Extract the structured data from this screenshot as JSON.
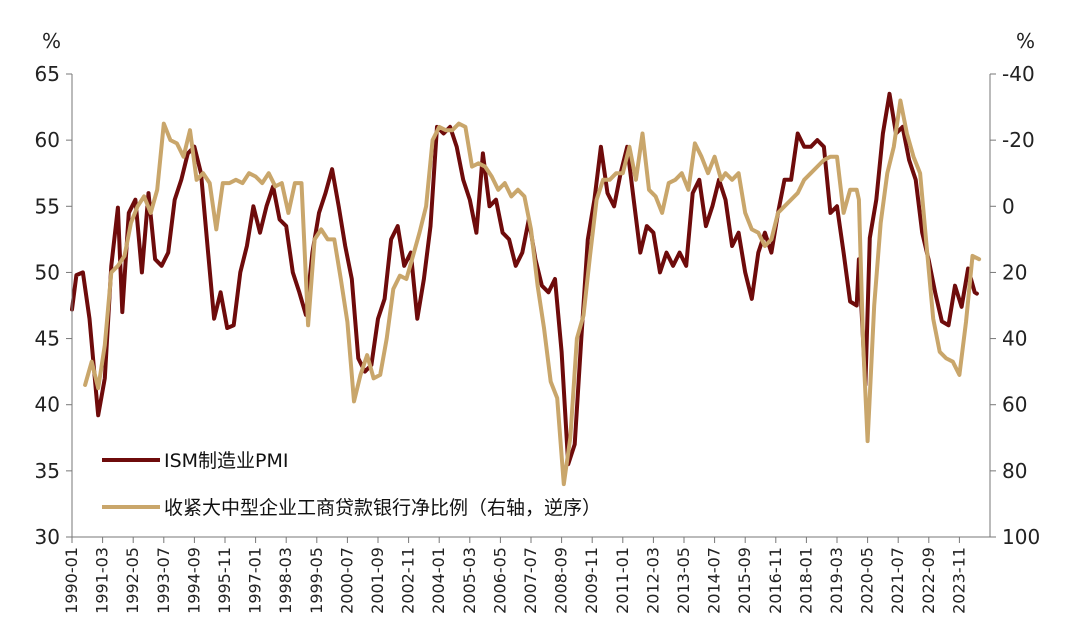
{
  "chart_data": {
    "type": "line",
    "title": "",
    "left_axis": {
      "unit": "%",
      "min": 30,
      "max": 65,
      "ticks": [
        "30",
        "35",
        "40",
        "45",
        "50",
        "55",
        "60",
        "65"
      ]
    },
    "right_axis": {
      "unit": "%",
      "min": -40,
      "max": 100,
      "inverted": true,
      "ticks": [
        "-40",
        "-20",
        "0",
        "20",
        "40",
        "60",
        "80",
        "100"
      ]
    },
    "x_tick_labels": [
      "1990-01",
      "1991-03",
      "1992-05",
      "1993-07",
      "1994-09",
      "1995-11",
      "1997-01",
      "1998-03",
      "1999-05",
      "2000-07",
      "2001-09",
      "2002-11",
      "2004-01",
      "2005-03",
      "2006-05",
      "2007-07",
      "2008-09",
      "2009-11",
      "2011-01",
      "2012-03",
      "2013-05",
      "2014-07",
      "2015-09",
      "2016-11",
      "2018-01",
      "2019-03",
      "2020-05",
      "2021-07",
      "2022-09",
      "2023-11"
    ],
    "series": [
      {
        "name": "ISM制造业PMI",
        "color": "#6e0b0b",
        "axis": "left",
        "points": [
          [
            "1990-01",
            47.2
          ],
          [
            "1990-03",
            49.8
          ],
          [
            "1990-06",
            50.0
          ],
          [
            "1990-09",
            46.5
          ],
          [
            "1990-12",
            41.0
          ],
          [
            "1991-01",
            39.2
          ],
          [
            "1991-04",
            42.0
          ],
          [
            "1991-07",
            50.5
          ],
          [
            "1991-10",
            54.9
          ],
          [
            "1991-12",
            47.0
          ],
          [
            "1992-03",
            54.5
          ],
          [
            "1992-06",
            55.5
          ],
          [
            "1992-09",
            50.0
          ],
          [
            "1992-12",
            56.0
          ],
          [
            "1993-03",
            51.0
          ],
          [
            "1993-06",
            50.5
          ],
          [
            "1993-09",
            51.5
          ],
          [
            "1993-12",
            55.5
          ],
          [
            "1994-03",
            57.0
          ],
          [
            "1994-06",
            59.0
          ],
          [
            "1994-09",
            59.5
          ],
          [
            "1994-12",
            57.5
          ],
          [
            "1995-03",
            52.0
          ],
          [
            "1995-06",
            46.5
          ],
          [
            "1995-09",
            48.5
          ],
          [
            "1995-12",
            45.8
          ],
          [
            "1996-03",
            46.0
          ],
          [
            "1996-06",
            50.0
          ],
          [
            "1996-09",
            52.0
          ],
          [
            "1996-12",
            55.0
          ],
          [
            "1997-03",
            53.0
          ],
          [
            "1997-06",
            55.0
          ],
          [
            "1997-09",
            56.5
          ],
          [
            "1997-12",
            54.0
          ],
          [
            "1998-03",
            53.5
          ],
          [
            "1998-06",
            50.0
          ],
          [
            "1998-09",
            48.5
          ],
          [
            "1998-12",
            46.8
          ],
          [
            "1999-03",
            51.5
          ],
          [
            "1999-06",
            54.5
          ],
          [
            "1999-09",
            56.0
          ],
          [
            "1999-12",
            57.8
          ],
          [
            "2000-03",
            55.0
          ],
          [
            "2000-06",
            52.0
          ],
          [
            "2000-09",
            49.5
          ],
          [
            "2000-12",
            43.5
          ],
          [
            "2001-03",
            42.5
          ],
          [
            "2001-06",
            43.0
          ],
          [
            "2001-09",
            46.5
          ],
          [
            "2001-12",
            48.0
          ],
          [
            "2002-03",
            52.5
          ],
          [
            "2002-06",
            53.5
          ],
          [
            "2002-09",
            50.5
          ],
          [
            "2002-12",
            51.5
          ],
          [
            "2003-03",
            46.5
          ],
          [
            "2003-06",
            49.5
          ],
          [
            "2003-09",
            53.5
          ],
          [
            "2003-12",
            61.0
          ],
          [
            "2004-03",
            60.5
          ],
          [
            "2004-06",
            61.0
          ],
          [
            "2004-09",
            59.5
          ],
          [
            "2004-12",
            57.0
          ],
          [
            "2005-03",
            55.5
          ],
          [
            "2005-06",
            53.0
          ],
          [
            "2005-09",
            59.0
          ],
          [
            "2005-12",
            55.0
          ],
          [
            "2006-03",
            55.5
          ],
          [
            "2006-06",
            53.0
          ],
          [
            "2006-09",
            52.5
          ],
          [
            "2006-12",
            50.5
          ],
          [
            "2007-03",
            51.5
          ],
          [
            "2007-06",
            54.0
          ],
          [
            "2007-09",
            51.0
          ],
          [
            "2007-12",
            49.0
          ],
          [
            "2008-03",
            48.5
          ],
          [
            "2008-06",
            49.5
          ],
          [
            "2008-09",
            44.0
          ],
          [
            "2008-12",
            35.5
          ],
          [
            "2009-03",
            37.0
          ],
          [
            "2009-06",
            45.0
          ],
          [
            "2009-09",
            52.5
          ],
          [
            "2009-12",
            55.5
          ],
          [
            "2010-03",
            59.5
          ],
          [
            "2010-06",
            56.0
          ],
          [
            "2010-09",
            55.0
          ],
          [
            "2010-12",
            57.5
          ],
          [
            "2011-03",
            59.5
          ],
          [
            "2011-06",
            55.5
          ],
          [
            "2011-09",
            51.5
          ],
          [
            "2011-12",
            53.5
          ],
          [
            "2012-03",
            53.0
          ],
          [
            "2012-06",
            50.0
          ],
          [
            "2012-09",
            51.5
          ],
          [
            "2012-12",
            50.5
          ],
          [
            "2013-03",
            51.5
          ],
          [
            "2013-06",
            50.5
          ],
          [
            "2013-09",
            56.0
          ],
          [
            "2013-12",
            57.0
          ],
          [
            "2014-03",
            53.5
          ],
          [
            "2014-06",
            55.0
          ],
          [
            "2014-09",
            57.0
          ],
          [
            "2014-12",
            55.5
          ],
          [
            "2015-03",
            52.0
          ],
          [
            "2015-06",
            53.0
          ],
          [
            "2015-09",
            50.0
          ],
          [
            "2015-12",
            48.0
          ],
          [
            "2016-03",
            51.5
          ],
          [
            "2016-06",
            53.0
          ],
          [
            "2016-09",
            51.5
          ],
          [
            "2016-12",
            54.5
          ],
          [
            "2017-03",
            57.0
          ],
          [
            "2017-06",
            57.0
          ],
          [
            "2017-09",
            60.5
          ],
          [
            "2017-12",
            59.5
          ],
          [
            "2018-03",
            59.5
          ],
          [
            "2018-06",
            60.0
          ],
          [
            "2018-09",
            59.5
          ],
          [
            "2018-12",
            54.5
          ],
          [
            "2019-03",
            55.0
          ],
          [
            "2019-06",
            51.5
          ],
          [
            "2019-09",
            47.8
          ],
          [
            "2019-12",
            47.5
          ],
          [
            "2020-01",
            51.0
          ],
          [
            "2020-04",
            41.5
          ],
          [
            "2020-06",
            52.6
          ],
          [
            "2020-09",
            55.5
          ],
          [
            "2020-12",
            60.5
          ],
          [
            "2021-03",
            63.5
          ],
          [
            "2021-06",
            60.5
          ],
          [
            "2021-09",
            61.0
          ],
          [
            "2021-12",
            58.5
          ],
          [
            "2022-03",
            57.0
          ],
          [
            "2022-06",
            53.0
          ],
          [
            "2022-09",
            50.9
          ],
          [
            "2022-12",
            48.4
          ],
          [
            "2023-03",
            46.3
          ],
          [
            "2023-06",
            46.0
          ],
          [
            "2023-09",
            49.0
          ],
          [
            "2023-12",
            47.4
          ],
          [
            "2024-03",
            50.3
          ],
          [
            "2024-06",
            48.5
          ],
          [
            "2024-07",
            48.4
          ]
        ]
      },
      {
        "name": "收紧大中型企业工商贷款银行净比例（右轴，逆序）",
        "color": "#c9a66b",
        "axis": "right",
        "points": [
          [
            "1990-07",
            54
          ],
          [
            "1990-10",
            47
          ],
          [
            "1991-01",
            55
          ],
          [
            "1991-04",
            42
          ],
          [
            "1991-07",
            20
          ],
          [
            "1991-10",
            18
          ],
          [
            "1992-01",
            15
          ],
          [
            "1992-04",
            5
          ],
          [
            "1992-07",
            0
          ],
          [
            "1992-10",
            -3
          ],
          [
            "1993-01",
            2
          ],
          [
            "1993-04",
            -5
          ],
          [
            "1993-07",
            -25
          ],
          [
            "1993-10",
            -20
          ],
          [
            "1994-01",
            -19
          ],
          [
            "1994-04",
            -15
          ],
          [
            "1994-07",
            -23
          ],
          [
            "1994-10",
            -8
          ],
          [
            "1995-01",
            -10
          ],
          [
            "1995-04",
            -7
          ],
          [
            "1995-07",
            7
          ],
          [
            "1995-10",
            -7
          ],
          [
            "1996-01",
            -7
          ],
          [
            "1996-04",
            -8
          ],
          [
            "1996-07",
            -7
          ],
          [
            "1996-10",
            -10
          ],
          [
            "1997-01",
            -9
          ],
          [
            "1997-04",
            -7
          ],
          [
            "1997-07",
            -10
          ],
          [
            "1997-10",
            -6
          ],
          [
            "1998-01",
            -7
          ],
          [
            "1998-04",
            2
          ],
          [
            "1998-07",
            -7
          ],
          [
            "1998-10",
            -7
          ],
          [
            "1999-01",
            36
          ],
          [
            "1999-04",
            10
          ],
          [
            "1999-07",
            7
          ],
          [
            "1999-10",
            10
          ],
          [
            "2000-01",
            10
          ],
          [
            "2000-04",
            22
          ],
          [
            "2000-07",
            35
          ],
          [
            "2000-10",
            59
          ],
          [
            "2001-01",
            51
          ],
          [
            "2001-04",
            45
          ],
          [
            "2001-07",
            52
          ],
          [
            "2001-10",
            51
          ],
          [
            "2002-01",
            40
          ],
          [
            "2002-04",
            25
          ],
          [
            "2002-07",
            21
          ],
          [
            "2002-10",
            22
          ],
          [
            "2003-01",
            15
          ],
          [
            "2003-04",
            8
          ],
          [
            "2003-07",
            0
          ],
          [
            "2003-10",
            -20
          ],
          [
            "2004-01",
            -24
          ],
          [
            "2004-04",
            -23
          ],
          [
            "2004-07",
            -23
          ],
          [
            "2004-10",
            -25
          ],
          [
            "2005-01",
            -24
          ],
          [
            "2005-04",
            -12
          ],
          [
            "2005-07",
            -13
          ],
          [
            "2005-10",
            -12
          ],
          [
            "2006-01",
            -9
          ],
          [
            "2006-04",
            -5
          ],
          [
            "2006-07",
            -7
          ],
          [
            "2006-10",
            -3
          ],
          [
            "2007-01",
            -5
          ],
          [
            "2007-04",
            -3
          ],
          [
            "2007-07",
            7
          ],
          [
            "2007-10",
            24
          ],
          [
            "2008-01",
            37
          ],
          [
            "2008-04",
            53
          ],
          [
            "2008-07",
            58
          ],
          [
            "2008-10",
            84
          ],
          [
            "2009-01",
            70
          ],
          [
            "2009-04",
            40
          ],
          [
            "2009-07",
            33
          ],
          [
            "2009-10",
            15
          ],
          [
            "2010-01",
            -2
          ],
          [
            "2010-04",
            -8
          ],
          [
            "2010-07",
            -8
          ],
          [
            "2010-10",
            -10
          ],
          [
            "2011-01",
            -10
          ],
          [
            "2011-04",
            -18
          ],
          [
            "2011-07",
            -8
          ],
          [
            "2011-10",
            -22
          ],
          [
            "2012-01",
            -5
          ],
          [
            "2012-04",
            -3
          ],
          [
            "2012-07",
            2
          ],
          [
            "2012-10",
            -7
          ],
          [
            "2013-01",
            -8
          ],
          [
            "2013-04",
            -10
          ],
          [
            "2013-07",
            -5
          ],
          [
            "2013-10",
            -19
          ],
          [
            "2014-01",
            -15
          ],
          [
            "2014-04",
            -10
          ],
          [
            "2014-07",
            -15
          ],
          [
            "2014-10",
            -8
          ],
          [
            "2014-12",
            -10
          ],
          [
            "2015-03",
            -8
          ],
          [
            "2015-06",
            -10
          ],
          [
            "2015-09",
            2
          ],
          [
            "2015-12",
            7
          ],
          [
            "2016-03",
            8
          ],
          [
            "2016-06",
            12
          ],
          [
            "2016-09",
            10
          ],
          [
            "2016-12",
            2
          ],
          [
            "2017-03",
            0
          ],
          [
            "2017-06",
            -2
          ],
          [
            "2017-09",
            -4
          ],
          [
            "2017-12",
            -8
          ],
          [
            "2018-03",
            -10
          ],
          [
            "2018-06",
            -12
          ],
          [
            "2018-09",
            -14
          ],
          [
            "2018-12",
            -15
          ],
          [
            "2019-03",
            -15
          ],
          [
            "2019-06",
            2
          ],
          [
            "2019-09",
            -5
          ],
          [
            "2019-12",
            -5
          ],
          [
            "2020-01",
            -2
          ],
          [
            "2020-03",
            42
          ],
          [
            "2020-05",
            71
          ],
          [
            "2020-08",
            30
          ],
          [
            "2020-11",
            5
          ],
          [
            "2021-02",
            -10
          ],
          [
            "2021-05",
            -18
          ],
          [
            "2021-08",
            -32
          ],
          [
            "2021-11",
            -22
          ],
          [
            "2022-02",
            -15
          ],
          [
            "2022-05",
            -10
          ],
          [
            "2022-08",
            12
          ],
          [
            "2022-11",
            34
          ],
          [
            "2023-02",
            44
          ],
          [
            "2023-05",
            46
          ],
          [
            "2023-08",
            47
          ],
          [
            "2023-11",
            51
          ],
          [
            "2024-02",
            35
          ],
          [
            "2024-05",
            15
          ],
          [
            "2024-08",
            16
          ]
        ]
      }
    ],
    "legend_position": "bottom-left",
    "grid": false
  }
}
